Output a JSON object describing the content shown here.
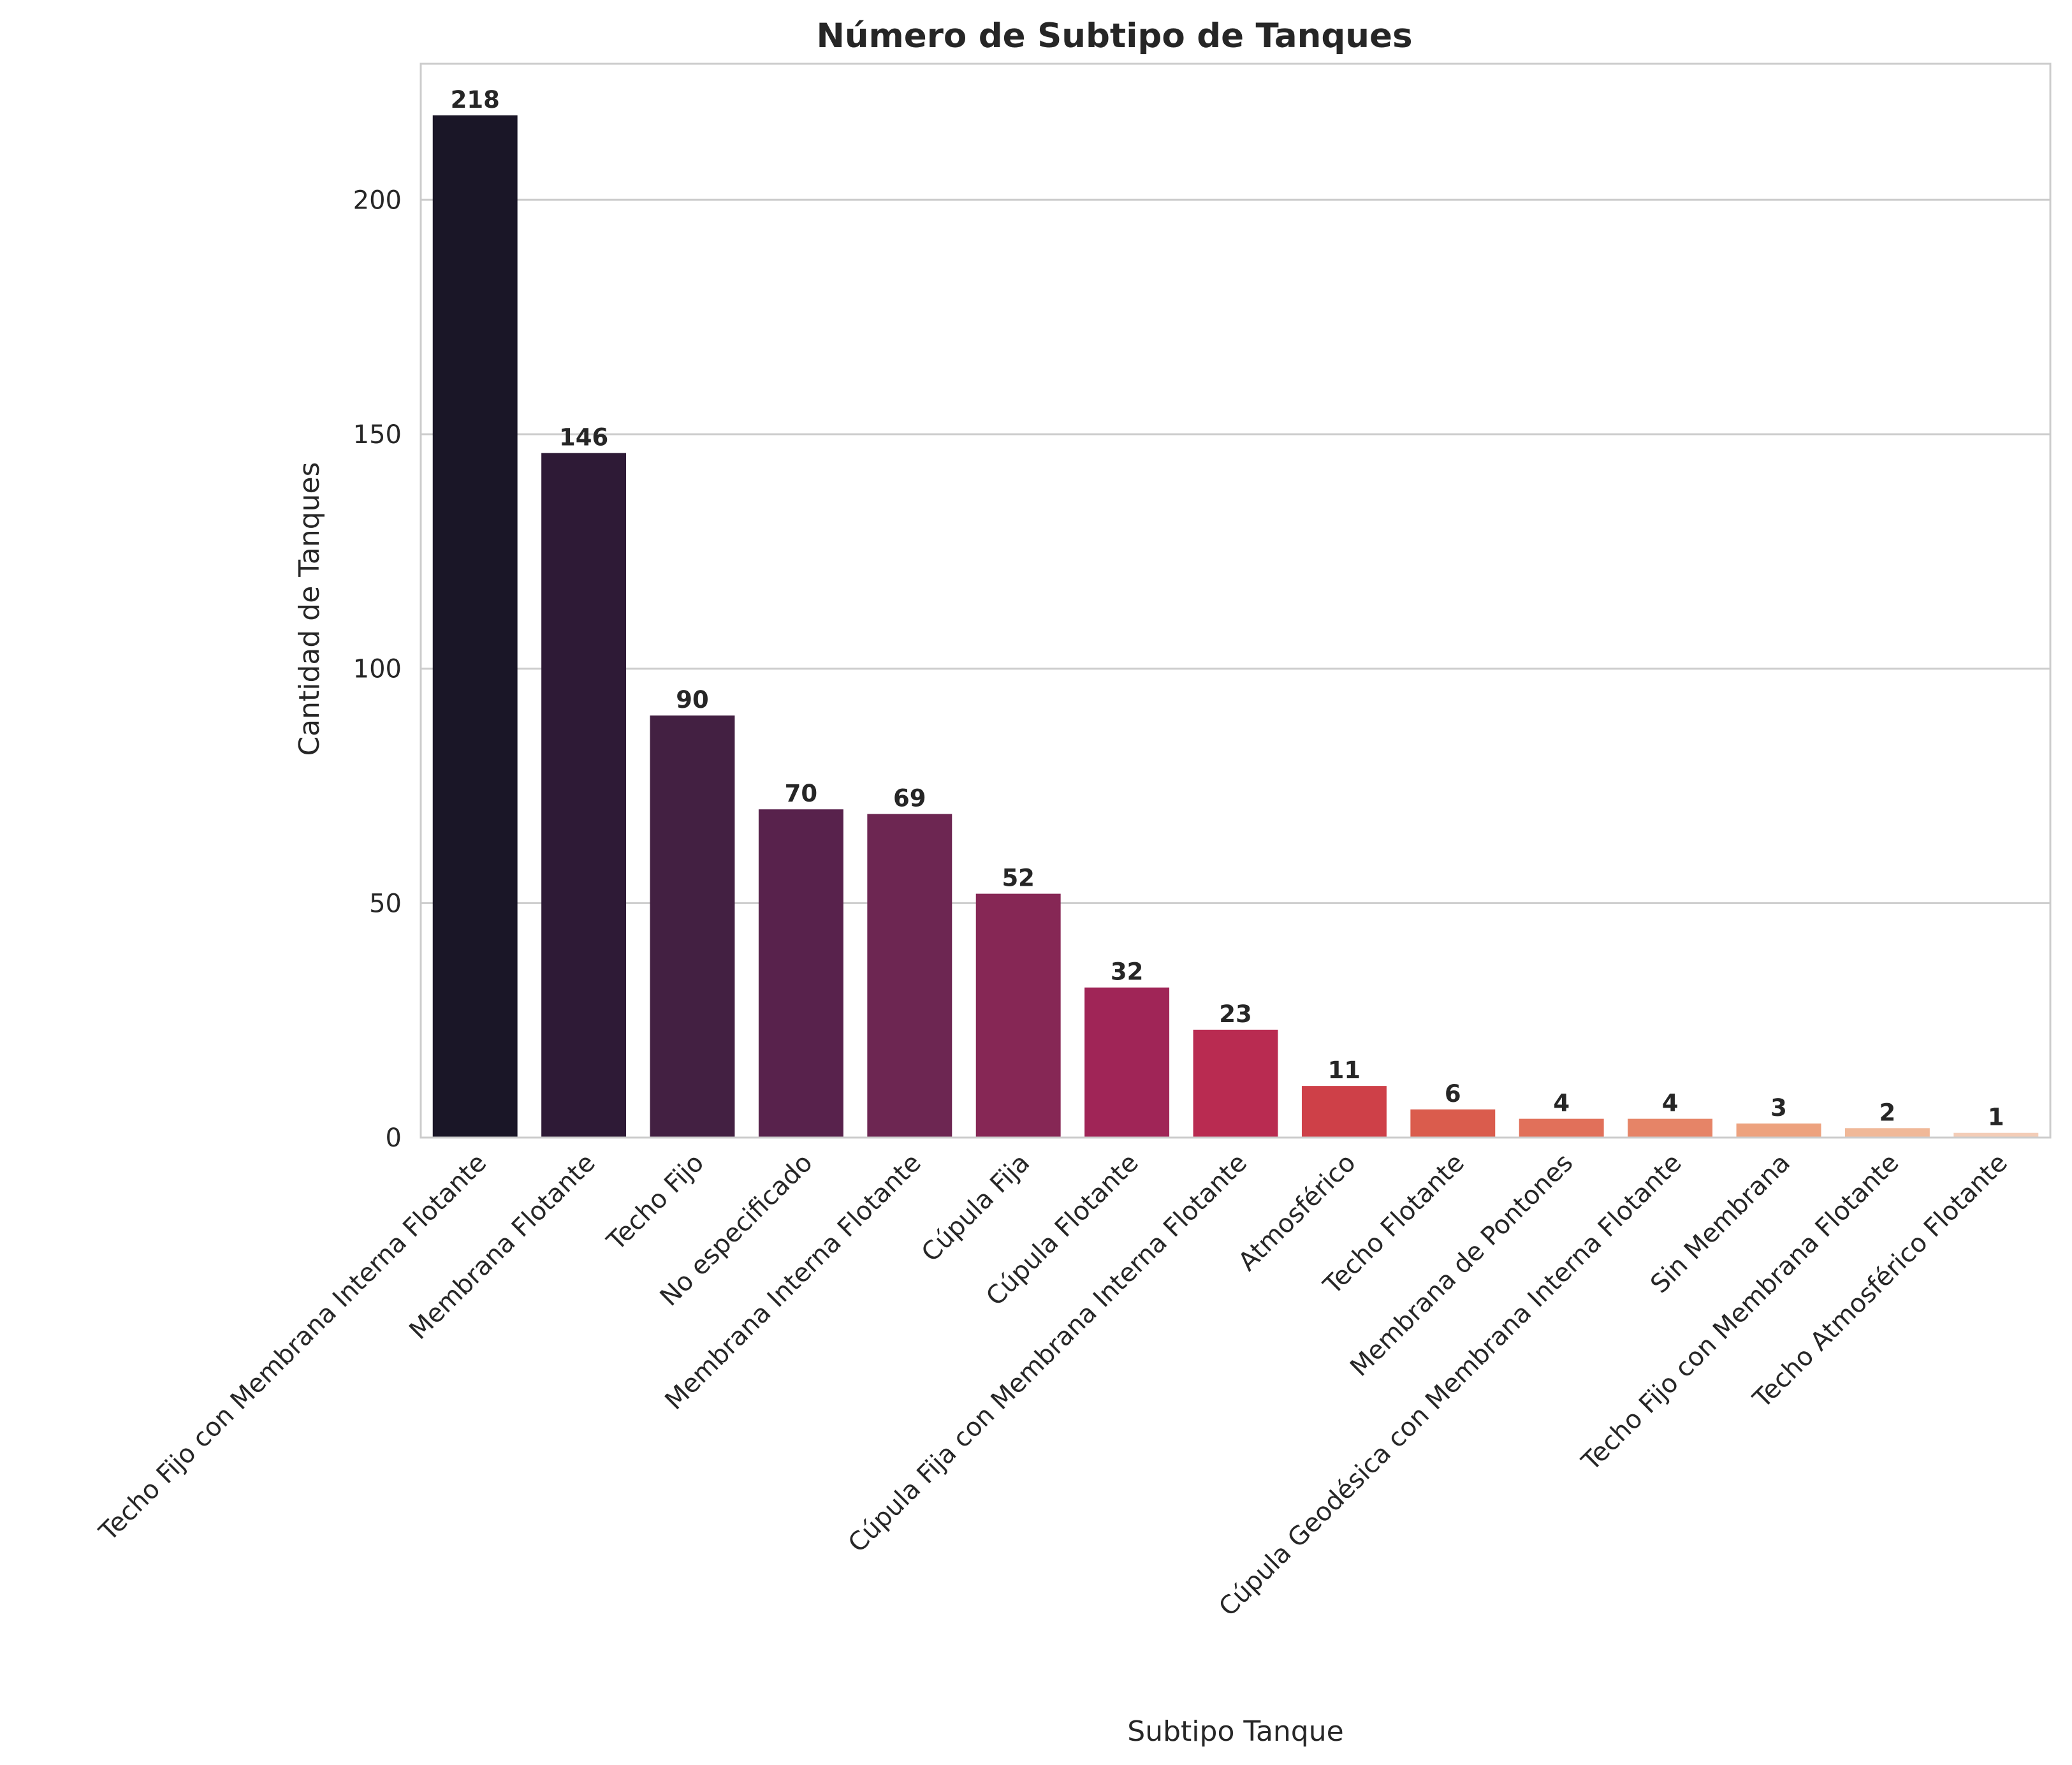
{
  "chart_data": {
    "type": "bar",
    "title": "Número de Subtipo de Tanques",
    "xlabel": "Subtipo Tanque",
    "ylabel": "Cantidad de Tanques",
    "ylim": [
      0,
      229
    ],
    "yticks": [
      0,
      50,
      100,
      150,
      200
    ],
    "grid": true,
    "legend": "none",
    "categories": [
      "Techo Fijo con Membrana Interna Flotante",
      "Membrana Flotante",
      "Techo Fijo",
      "No especificado",
      "Membrana Interna Flotante",
      "Cúpula Fija",
      "Cúpula Flotante",
      "Cúpula Fija con Membrana Interna Flotante",
      "Atmosférico",
      "Techo Flotante",
      "Membrana de Pontones",
      "Cúpula Geodésica con Membrana Interna Flotante",
      "Sin Membrana",
      "Techo Fijo con Membrana Flotante",
      "Techo Atmosférico Flotante"
    ],
    "values": [
      218,
      146,
      90,
      70,
      69,
      52,
      32,
      23,
      11,
      6,
      4,
      4,
      3,
      2,
      1
    ],
    "colors": [
      "#1a1627",
      "#2e1a36",
      "#432042",
      "#58224c",
      "#6d2652",
      "#862755",
      "#a02557",
      "#b92b51",
      "#ce4048",
      "#da5c4d",
      "#e1705a",
      "#e68467",
      "#eda27e",
      "#f0b898",
      "#f3cdb7"
    ]
  }
}
